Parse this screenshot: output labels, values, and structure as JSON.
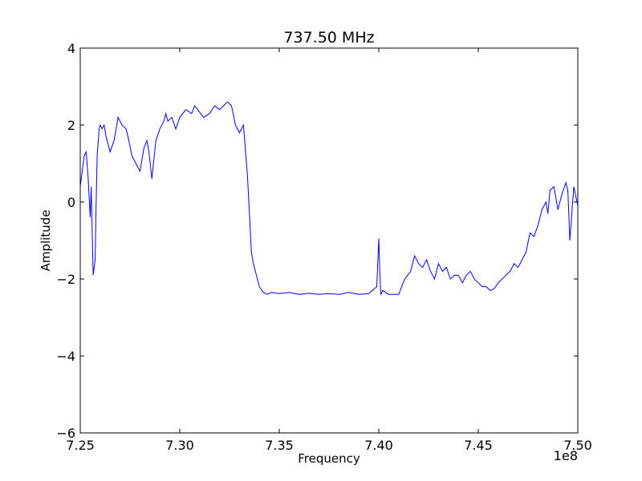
{
  "chart_data": {
    "type": "line",
    "title": "737.50 MHz",
    "xlabel": "Frequency",
    "ylabel": "Amplitude",
    "x_scale_label": "1e8",
    "xlim": [
      7.25,
      7.5
    ],
    "ylim": [
      -6,
      4
    ],
    "x_ticks": [
      7.25,
      7.3,
      7.35,
      7.4,
      7.45,
      7.5
    ],
    "x_tick_labels": [
      "7.25",
      "7.30",
      "7.35",
      "7.40",
      "7.45",
      "7.50"
    ],
    "y_ticks": [
      -6,
      -4,
      -2,
      0,
      2,
      4
    ],
    "y_tick_labels": [
      "−6",
      "−4",
      "−2",
      "0",
      "2",
      "4"
    ],
    "grid": false,
    "line_color": "#0000ff",
    "series": [
      {
        "x": [
          7.25,
          7.251,
          7.252,
          7.253,
          7.254,
          7.255,
          7.2555,
          7.2565,
          7.2575,
          7.258,
          7.2585,
          7.2595,
          7.26,
          7.261,
          7.262,
          7.263,
          7.265,
          7.267,
          7.269,
          7.271,
          7.273,
          7.274,
          7.276,
          7.278,
          7.28,
          7.282,
          7.2835,
          7.2845,
          7.286,
          7.288,
          7.29,
          7.292,
          7.293,
          7.294,
          7.296,
          7.298,
          7.3,
          7.303,
          7.306,
          7.3075,
          7.309,
          7.312,
          7.315,
          7.3175,
          7.32,
          7.322,
          7.324,
          7.326,
          7.328,
          7.33,
          7.332,
          7.334,
          7.336,
          7.337,
          7.338,
          7.339,
          7.34,
          7.342,
          7.344,
          7.346,
          7.35,
          7.355,
          7.36,
          7.365,
          7.37,
          7.375,
          7.38,
          7.385,
          7.39,
          7.395,
          7.399,
          7.4,
          7.4005,
          7.401,
          7.402,
          7.405,
          7.41,
          7.413,
          7.416,
          7.418,
          7.42,
          7.422,
          7.424,
          7.426,
          7.428,
          7.43,
          7.432,
          7.434,
          7.436,
          7.438,
          7.44,
          7.442,
          7.444,
          7.446,
          7.448,
          7.45,
          7.452,
          7.454,
          7.456,
          7.458,
          7.46,
          7.462,
          7.464,
          7.466,
          7.468,
          7.47,
          7.472,
          7.474,
          7.476,
          7.478,
          7.48,
          7.482,
          7.484,
          7.485,
          7.486,
          7.488,
          7.49,
          7.492,
          7.494,
          7.495,
          7.496,
          7.498,
          7.5
        ],
        "y": [
          0.4,
          0.8,
          1.2,
          1.3,
          0.6,
          -0.4,
          0.4,
          -1.9,
          -1.5,
          0.0,
          1.2,
          1.9,
          2.0,
          1.9,
          2.0,
          1.7,
          1.3,
          1.6,
          2.2,
          2.0,
          1.9,
          1.7,
          1.2,
          1.0,
          0.8,
          1.4,
          1.6,
          1.3,
          0.6,
          1.6,
          1.9,
          2.1,
          2.3,
          2.1,
          2.2,
          1.9,
          2.2,
          2.4,
          2.3,
          2.5,
          2.4,
          2.2,
          2.3,
          2.5,
          2.4,
          2.5,
          2.6,
          2.5,
          2.0,
          1.8,
          2.0,
          0.7,
          -1.3,
          -1.6,
          -1.8,
          -2.0,
          -2.2,
          -2.35,
          -2.4,
          -2.35,
          -2.38,
          -2.35,
          -2.4,
          -2.37,
          -2.4,
          -2.38,
          -2.4,
          -2.35,
          -2.4,
          -2.38,
          -2.2,
          -0.95,
          -1.8,
          -2.4,
          -2.3,
          -2.4,
          -2.4,
          -2.0,
          -1.8,
          -1.4,
          -1.6,
          -1.7,
          -1.5,
          -1.8,
          -2.0,
          -1.6,
          -1.8,
          -1.7,
          -2.0,
          -1.9,
          -1.9,
          -2.1,
          -1.9,
          -1.8,
          -2.0,
          -2.1,
          -2.2,
          -2.2,
          -2.3,
          -2.25,
          -2.1,
          -2.0,
          -1.9,
          -1.8,
          -1.6,
          -1.7,
          -1.5,
          -1.3,
          -0.8,
          -0.9,
          -0.6,
          -0.2,
          0.0,
          -0.3,
          0.3,
          0.4,
          -0.2,
          0.2,
          0.5,
          0.3,
          -1.0,
          0.4,
          -0.1
        ]
      }
    ]
  }
}
